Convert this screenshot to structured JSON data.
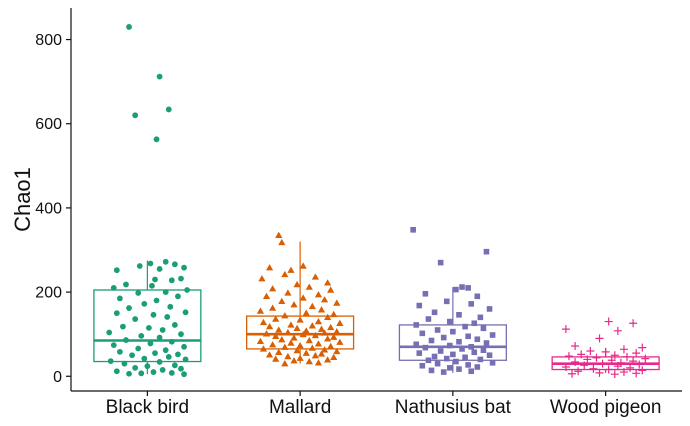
{
  "chart_data": {
    "type": "boxplot",
    "title": "",
    "xlabel": "",
    "ylabel": "Chao1",
    "ylim": [
      -35,
      875
    ],
    "yticks": [
      0,
      200,
      400,
      600,
      800
    ],
    "grid": false,
    "categories": [
      "Black bird",
      "Mallard",
      "Nathusius bat",
      "Wood pigeon"
    ],
    "series": [
      {
        "color": "#1b9e77",
        "marker": "circle",
        "box": {
          "min": 5,
          "q1": 35,
          "median": 85,
          "q3": 205,
          "max": 275
        },
        "points": [
          [
            -0.12,
            830
          ],
          [
            0.08,
            712
          ],
          [
            0.14,
            634
          ],
          [
            -0.08,
            620
          ],
          [
            0.06,
            563
          ],
          [
            0.12,
            272
          ],
          [
            0.02,
            268
          ],
          [
            0.18,
            266
          ],
          [
            -0.05,
            262
          ],
          [
            0.24,
            258
          ],
          [
            0.08,
            255
          ],
          [
            -0.2,
            252
          ],
          [
            0.22,
            232
          ],
          [
            0.05,
            230
          ],
          [
            0.16,
            228
          ],
          [
            -0.14,
            218
          ],
          [
            0.03,
            215
          ],
          [
            -0.22,
            210
          ],
          [
            0.26,
            205
          ],
          [
            0.12,
            200
          ],
          [
            -0.06,
            198
          ],
          [
            0.2,
            190
          ],
          [
            -0.18,
            185
          ],
          [
            0.06,
            180
          ],
          [
            -0.02,
            172
          ],
          [
            0.15,
            165
          ],
          [
            -0.12,
            162
          ],
          [
            0.25,
            152
          ],
          [
            -0.2,
            150
          ],
          [
            0.04,
            146
          ],
          [
            0.13,
            141
          ],
          [
            -0.08,
            136
          ],
          [
            0.18,
            122
          ],
          [
            -0.16,
            118
          ],
          [
            0.01,
            115
          ],
          [
            0.1,
            110
          ],
          [
            -0.25,
            104
          ],
          [
            0.22,
            100
          ],
          [
            -0.04,
            96
          ],
          [
            0.08,
            92
          ],
          [
            -0.14,
            86
          ],
          [
            0.16,
            82
          ],
          [
            0.02,
            78
          ],
          [
            -0.22,
            74
          ],
          [
            0.24,
            70
          ],
          [
            -0.06,
            66
          ],
          [
            0.12,
            62
          ],
          [
            -0.18,
            58
          ],
          [
            0.05,
            55
          ],
          [
            0.2,
            52
          ],
          [
            -0.1,
            50
          ],
          [
            0.14,
            46
          ],
          [
            -0.02,
            42
          ],
          [
            0.25,
            40
          ],
          [
            -0.24,
            36
          ],
          [
            0.08,
            34
          ],
          [
            -0.15,
            30
          ],
          [
            0.18,
            26
          ],
          [
            0.0,
            24
          ],
          [
            -0.08,
            20
          ],
          [
            0.22,
            18
          ],
          [
            0.1,
            15
          ],
          [
            -0.2,
            12
          ],
          [
            0.04,
            10
          ],
          [
            0.16,
            8
          ],
          [
            -0.12,
            6
          ],
          [
            0.24,
            5
          ],
          [
            -0.04,
            7
          ]
        ]
      },
      {
        "color": "#d95f02",
        "marker": "triangle",
        "box": {
          "min": 30,
          "q1": 65,
          "median": 100,
          "q3": 143,
          "max": 320
        },
        "points": [
          [
            -0.14,
            335
          ],
          [
            -0.12,
            318
          ],
          [
            0.02,
            262
          ],
          [
            -0.2,
            258
          ],
          [
            -0.06,
            252
          ],
          [
            -0.1,
            242
          ],
          [
            0.1,
            236
          ],
          [
            -0.25,
            232
          ],
          [
            0.18,
            222
          ],
          [
            -0.02,
            218
          ],
          [
            0.06,
            212
          ],
          [
            -0.18,
            208
          ],
          [
            0.2,
            205
          ],
          [
            -0.08,
            198
          ],
          [
            0.12,
            194
          ],
          [
            -0.22,
            190
          ],
          [
            0.02,
            186
          ],
          [
            0.16,
            182
          ],
          [
            -0.12,
            178
          ],
          [
            0.24,
            174
          ],
          [
            -0.04,
            170
          ],
          [
            0.08,
            166
          ],
          [
            -0.18,
            162
          ],
          [
            0.14,
            158
          ],
          [
            -0.26,
            155
          ],
          [
            0.04,
            150
          ],
          [
            0.22,
            147
          ],
          [
            -0.1,
            144
          ],
          [
            0.18,
            140
          ],
          [
            -0.16,
            136
          ],
          [
            0.0,
            134
          ],
          [
            0.12,
            130
          ],
          [
            -0.24,
            128
          ],
          [
            0.26,
            126
          ],
          [
            -0.06,
            122
          ],
          [
            0.08,
            120
          ],
          [
            -0.2,
            118
          ],
          [
            0.2,
            116
          ],
          [
            -0.02,
            114
          ],
          [
            0.14,
            112
          ],
          [
            -0.14,
            110
          ],
          [
            0.04,
            108
          ],
          [
            0.24,
            106
          ],
          [
            -0.08,
            104
          ],
          [
            0.16,
            103
          ],
          [
            -0.22,
            101
          ],
          [
            0.02,
            99
          ],
          [
            0.1,
            97
          ],
          [
            -0.16,
            95
          ],
          [
            0.22,
            93
          ],
          [
            -0.04,
            91
          ],
          [
            0.18,
            89
          ],
          [
            -0.12,
            87
          ],
          [
            0.06,
            85
          ],
          [
            -0.26,
            83
          ],
          [
            0.26,
            81
          ],
          [
            -0.06,
            79
          ],
          [
            0.12,
            77
          ],
          [
            -0.18,
            75
          ],
          [
            0.0,
            73
          ],
          [
            0.2,
            71
          ],
          [
            -0.1,
            69
          ],
          [
            0.08,
            67
          ],
          [
            -0.24,
            65
          ],
          [
            0.16,
            63
          ],
          [
            -0.02,
            61
          ],
          [
            0.24,
            59
          ],
          [
            -0.14,
            57
          ],
          [
            0.04,
            55
          ],
          [
            0.14,
            53
          ],
          [
            -0.2,
            51
          ],
          [
            0.1,
            49
          ],
          [
            -0.08,
            47
          ],
          [
            0.22,
            45
          ],
          [
            0.0,
            43
          ],
          [
            -0.16,
            41
          ],
          [
            0.18,
            39
          ],
          [
            -0.04,
            37
          ],
          [
            0.06,
            35
          ],
          [
            0.12,
            32
          ],
          [
            -0.1,
            30
          ]
        ]
      },
      {
        "color": "#7570b3",
        "marker": "square",
        "box": {
          "min": 8,
          "q1": 38,
          "median": 70,
          "q3": 122,
          "max": 212
        },
        "points": [
          [
            -0.26,
            348
          ],
          [
            0.22,
            296
          ],
          [
            -0.08,
            270
          ],
          [
            0.06,
            212
          ],
          [
            0.1,
            210
          ],
          [
            0.02,
            206
          ],
          [
            -0.18,
            196
          ],
          [
            0.16,
            190
          ],
          [
            -0.04,
            178
          ],
          [
            0.12,
            172
          ],
          [
            -0.22,
            168
          ],
          [
            0.24,
            160
          ],
          [
            -0.12,
            152
          ],
          [
            0.04,
            146
          ],
          [
            0.18,
            140
          ],
          [
            -0.16,
            136
          ],
          [
            -0.02,
            130
          ],
          [
            0.14,
            126
          ],
          [
            -0.24,
            122
          ],
          [
            0.08,
            118
          ],
          [
            0.2,
            114
          ],
          [
            -0.1,
            110
          ],
          [
            0.0,
            106
          ],
          [
            -0.2,
            102
          ],
          [
            0.26,
            98
          ],
          [
            0.1,
            95
          ],
          [
            -0.06,
            92
          ],
          [
            0.16,
            88
          ],
          [
            -0.14,
            85
          ],
          [
            0.04,
            82
          ],
          [
            0.22,
            79
          ],
          [
            -0.24,
            76
          ],
          [
            -0.02,
            73
          ],
          [
            0.12,
            70
          ],
          [
            -0.18,
            68
          ],
          [
            0.06,
            65
          ],
          [
            0.2,
            62
          ],
          [
            -0.08,
            60
          ],
          [
            0.14,
            57
          ],
          [
            -0.22,
            55
          ],
          [
            0.0,
            52
          ],
          [
            0.24,
            50
          ],
          [
            -0.12,
            47
          ],
          [
            0.08,
            45
          ],
          [
            -0.04,
            42
          ],
          [
            0.18,
            40
          ],
          [
            -0.16,
            38
          ],
          [
            0.02,
            35
          ],
          [
            0.26,
            32
          ],
          [
            -0.1,
            30
          ],
          [
            0.1,
            27
          ],
          [
            -0.2,
            25
          ],
          [
            0.16,
            22
          ],
          [
            -0.02,
            20
          ],
          [
            0.04,
            17
          ],
          [
            -0.14,
            14
          ],
          [
            0.12,
            12
          ],
          [
            -0.06,
            10
          ]
        ]
      },
      {
        "color": "#e7298a",
        "marker": "cross",
        "box": {
          "min": 8,
          "q1": 16,
          "median": 30,
          "q3": 46,
          "max": 66
        },
        "points": [
          [
            0.02,
            130
          ],
          [
            0.18,
            126
          ],
          [
            -0.26,
            112
          ],
          [
            0.08,
            108
          ],
          [
            -0.04,
            90
          ],
          [
            -0.2,
            72
          ],
          [
            0.24,
            68
          ],
          [
            0.12,
            64
          ],
          [
            -0.1,
            60
          ],
          [
            0.0,
            58
          ],
          [
            0.2,
            55
          ],
          [
            -0.16,
            52
          ],
          [
            0.06,
            50
          ],
          [
            -0.24,
            48
          ],
          [
            0.14,
            46
          ],
          [
            -0.06,
            44
          ],
          [
            0.26,
            42
          ],
          [
            -0.12,
            40
          ],
          [
            0.04,
            38
          ],
          [
            0.18,
            36
          ],
          [
            -0.2,
            34
          ],
          [
            0.1,
            32
          ],
          [
            -0.02,
            30
          ],
          [
            0.22,
            28
          ],
          [
            -0.14,
            26
          ],
          [
            0.08,
            24
          ],
          [
            -0.26,
            22
          ],
          [
            0.16,
            20
          ],
          [
            -0.08,
            18
          ],
          [
            0.02,
            16
          ],
          [
            0.24,
            14
          ],
          [
            -0.18,
            12
          ],
          [
            0.12,
            10
          ],
          [
            -0.04,
            8
          ],
          [
            0.2,
            7
          ],
          [
            -0.22,
            6
          ],
          [
            0.06,
            5
          ]
        ]
      }
    ]
  }
}
